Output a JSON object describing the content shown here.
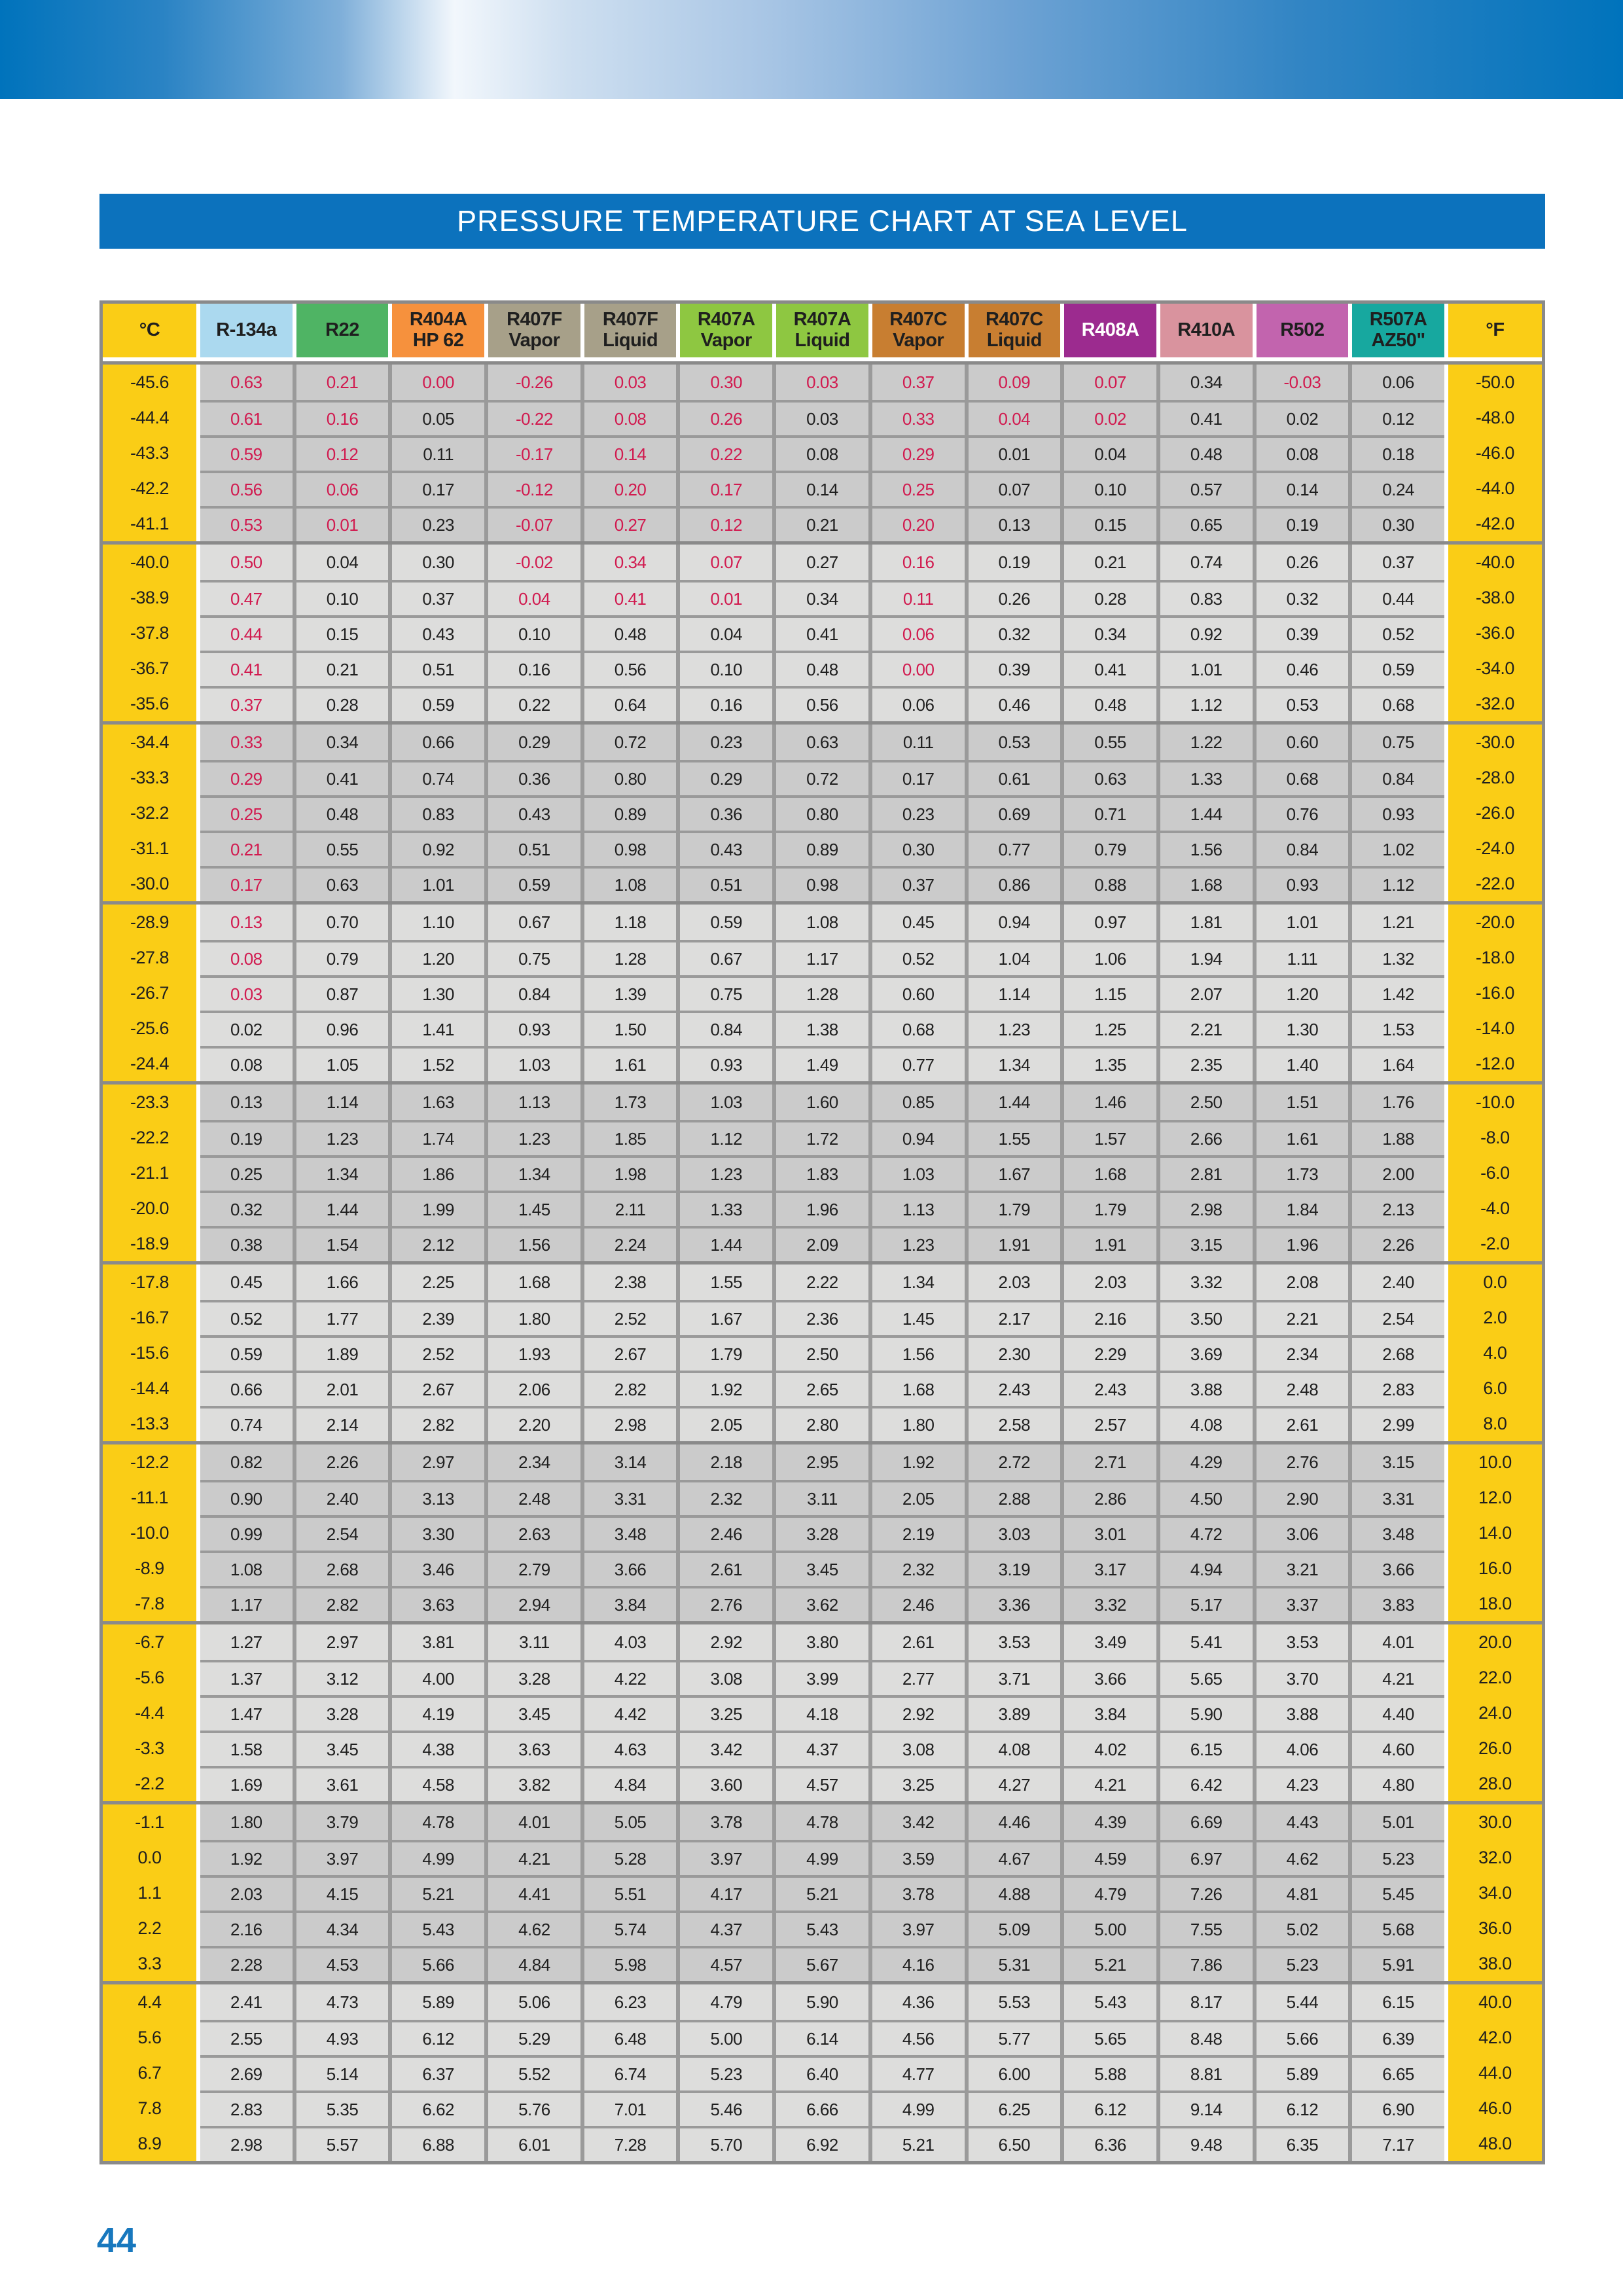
{
  "title": "PRESSURE TEMPERATURE CHART AT SEA LEVEL",
  "page_number": "44",
  "colors": {
    "title_bar": "#0C72BD",
    "banner_blue": "#0073BC",
    "temp_column_yellow": "#FACD16",
    "band_dark": "#CBCBCB",
    "band_light": "#DDDDDC",
    "grid_gray": "#9A9A9A",
    "outer_border": "#8A8A8A",
    "vacuum_red": "#D11A4F",
    "value_black": "#1F1F1F",
    "page_number_blue": "#1878BE"
  },
  "table": {
    "header": [
      {
        "label": "°C",
        "bg": "#FACD16",
        "fg": "#1F1F1F"
      },
      {
        "label": "R-134a",
        "bg": "#ABD9EF",
        "fg": "#1F1F1F"
      },
      {
        "label": "R22",
        "bg": "#4FB464",
        "fg": "#1F1F1F"
      },
      {
        "label": "R404A\nHP 62",
        "bg": "#F6913D",
        "fg": "#1F1F1F"
      },
      {
        "label": "R407F\nVapor",
        "bg": "#A7A089",
        "fg": "#1F1F1F"
      },
      {
        "label": "R407F\nLiquid",
        "bg": "#A7A089",
        "fg": "#1F1F1F"
      },
      {
        "label": "R407A\nVapor",
        "bg": "#8EC741",
        "fg": "#1F1F1F"
      },
      {
        "label": "R407A\nLiquid",
        "bg": "#8EC741",
        "fg": "#1F1F1F"
      },
      {
        "label": "R407C\nVapor",
        "bg": "#C87E31",
        "fg": "#1F1F1F"
      },
      {
        "label": "R407C\nLiquid",
        "bg": "#C87E31",
        "fg": "#1F1F1F"
      },
      {
        "label": "R408A",
        "bg": "#9C2B8F",
        "fg": "#FFFFFF"
      },
      {
        "label": "R410A",
        "bg": "#D9939E",
        "fg": "#1F1F1F"
      },
      {
        "label": "R502",
        "bg": "#C264AE",
        "fg": "#1F1F1F"
      },
      {
        "label": "R507A\nAZ50\"",
        "bg": "#17A89F",
        "fg": "#1F1F1F"
      },
      {
        "label": "°F",
        "bg": "#FACD16",
        "fg": "#1F1F1F"
      }
    ],
    "rows": [
      {
        "c": "-45.6",
        "f": "-50.0",
        "v": [
          "0.63",
          "0.21",
          "0.00",
          "-0.26",
          "0.03",
          "0.30",
          "0.03",
          "0.37",
          "0.09",
          "0.07",
          "0.34",
          "-0.03",
          "0.06"
        ],
        "red": [
          0,
          1,
          2,
          3,
          4,
          5,
          6,
          7,
          8,
          9,
          11
        ]
      },
      {
        "c": "-44.4",
        "f": "-48.0",
        "v": [
          "0.61",
          "0.16",
          "0.05",
          "-0.22",
          "0.08",
          "0.26",
          "0.03",
          "0.33",
          "0.04",
          "0.02",
          "0.41",
          "0.02",
          "0.12"
        ],
        "red": [
          0,
          1,
          3,
          4,
          5,
          7,
          8,
          9
        ]
      },
      {
        "c": "-43.3",
        "f": "-46.0",
        "v": [
          "0.59",
          "0.12",
          "0.11",
          "-0.17",
          "0.14",
          "0.22",
          "0.08",
          "0.29",
          "0.01",
          "0.04",
          "0.48",
          "0.08",
          "0.18"
        ],
        "red": [
          0,
          1,
          3,
          4,
          5,
          7
        ]
      },
      {
        "c": "-42.2",
        "f": "-44.0",
        "v": [
          "0.56",
          "0.06",
          "0.17",
          "-0.12",
          "0.20",
          "0.17",
          "0.14",
          "0.25",
          "0.07",
          "0.10",
          "0.57",
          "0.14",
          "0.24"
        ],
        "red": [
          0,
          1,
          3,
          4,
          5,
          7
        ]
      },
      {
        "c": "-41.1",
        "f": "-42.0",
        "v": [
          "0.53",
          "0.01",
          "0.23",
          "-0.07",
          "0.27",
          "0.12",
          "0.21",
          "0.20",
          "0.13",
          "0.15",
          "0.65",
          "0.19",
          "0.30"
        ],
        "red": [
          0,
          1,
          3,
          4,
          5,
          7
        ]
      },
      {
        "c": "-40.0",
        "f": "-40.0",
        "v": [
          "0.50",
          "0.04",
          "0.30",
          "-0.02",
          "0.34",
          "0.07",
          "0.27",
          "0.16",
          "0.19",
          "0.21",
          "0.74",
          "0.26",
          "0.37"
        ],
        "red": [
          0,
          3,
          4,
          5,
          7
        ]
      },
      {
        "c": "-38.9",
        "f": "-38.0",
        "v": [
          "0.47",
          "0.10",
          "0.37",
          "0.04",
          "0.41",
          "0.01",
          "0.34",
          "0.11",
          "0.26",
          "0.28",
          "0.83",
          "0.32",
          "0.44"
        ],
        "red": [
          0,
          3,
          4,
          5,
          7
        ]
      },
      {
        "c": "-37.8",
        "f": "-36.0",
        "v": [
          "0.44",
          "0.15",
          "0.43",
          "0.10",
          "0.48",
          "0.04",
          "0.41",
          "0.06",
          "0.32",
          "0.34",
          "0.92",
          "0.39",
          "0.52"
        ],
        "red": [
          0,
          7
        ]
      },
      {
        "c": "-36.7",
        "f": "-34.0",
        "v": [
          "0.41",
          "0.21",
          "0.51",
          "0.16",
          "0.56",
          "0.10",
          "0.48",
          "0.00",
          "0.39",
          "0.41",
          "1.01",
          "0.46",
          "0.59"
        ],
        "red": [
          0,
          7
        ]
      },
      {
        "c": "-35.6",
        "f": "-32.0",
        "v": [
          "0.37",
          "0.28",
          "0.59",
          "0.22",
          "0.64",
          "0.16",
          "0.56",
          "0.06",
          "0.46",
          "0.48",
          "1.12",
          "0.53",
          "0.68"
        ],
        "red": [
          0
        ]
      },
      {
        "c": "-34.4",
        "f": "-30.0",
        "v": [
          "0.33",
          "0.34",
          "0.66",
          "0.29",
          "0.72",
          "0.23",
          "0.63",
          "0.11",
          "0.53",
          "0.55",
          "1.22",
          "0.60",
          "0.75"
        ],
        "red": [
          0
        ]
      },
      {
        "c": "-33.3",
        "f": "-28.0",
        "v": [
          "0.29",
          "0.41",
          "0.74",
          "0.36",
          "0.80",
          "0.29",
          "0.72",
          "0.17",
          "0.61",
          "0.63",
          "1.33",
          "0.68",
          "0.84"
        ],
        "red": [
          0
        ]
      },
      {
        "c": "-32.2",
        "f": "-26.0",
        "v": [
          "0.25",
          "0.48",
          "0.83",
          "0.43",
          "0.89",
          "0.36",
          "0.80",
          "0.23",
          "0.69",
          "0.71",
          "1.44",
          "0.76",
          "0.93"
        ],
        "red": [
          0
        ]
      },
      {
        "c": "-31.1",
        "f": "-24.0",
        "v": [
          "0.21",
          "0.55",
          "0.92",
          "0.51",
          "0.98",
          "0.43",
          "0.89",
          "0.30",
          "0.77",
          "0.79",
          "1.56",
          "0.84",
          "1.02"
        ],
        "red": [
          0
        ]
      },
      {
        "c": "-30.0",
        "f": "-22.0",
        "v": [
          "0.17",
          "0.63",
          "1.01",
          "0.59",
          "1.08",
          "0.51",
          "0.98",
          "0.37",
          "0.86",
          "0.88",
          "1.68",
          "0.93",
          "1.12"
        ],
        "red": [
          0
        ]
      },
      {
        "c": "-28.9",
        "f": "-20.0",
        "v": [
          "0.13",
          "0.70",
          "1.10",
          "0.67",
          "1.18",
          "0.59",
          "1.08",
          "0.45",
          "0.94",
          "0.97",
          "1.81",
          "1.01",
          "1.21"
        ],
        "red": [
          0
        ]
      },
      {
        "c": "-27.8",
        "f": "-18.0",
        "v": [
          "0.08",
          "0.79",
          "1.20",
          "0.75",
          "1.28",
          "0.67",
          "1.17",
          "0.52",
          "1.04",
          "1.06",
          "1.94",
          "1.11",
          "1.32"
        ],
        "red": [
          0
        ]
      },
      {
        "c": "-26.7",
        "f": "-16.0",
        "v": [
          "0.03",
          "0.87",
          "1.30",
          "0.84",
          "1.39",
          "0.75",
          "1.28",
          "0.60",
          "1.14",
          "1.15",
          "2.07",
          "1.20",
          "1.42"
        ],
        "red": [
          0
        ]
      },
      {
        "c": "-25.6",
        "f": "-14.0",
        "v": [
          "0.02",
          "0.96",
          "1.41",
          "0.93",
          "1.50",
          "0.84",
          "1.38",
          "0.68",
          "1.23",
          "1.25",
          "2.21",
          "1.30",
          "1.53"
        ],
        "red": []
      },
      {
        "c": "-24.4",
        "f": "-12.0",
        "v": [
          "0.08",
          "1.05",
          "1.52",
          "1.03",
          "1.61",
          "0.93",
          "1.49",
          "0.77",
          "1.34",
          "1.35",
          "2.35",
          "1.40",
          "1.64"
        ],
        "red": []
      },
      {
        "c": "-23.3",
        "f": "-10.0",
        "v": [
          "0.13",
          "1.14",
          "1.63",
          "1.13",
          "1.73",
          "1.03",
          "1.60",
          "0.85",
          "1.44",
          "1.46",
          "2.50",
          "1.51",
          "1.76"
        ],
        "red": []
      },
      {
        "c": "-22.2",
        "f": "-8.0",
        "v": [
          "0.19",
          "1.23",
          "1.74",
          "1.23",
          "1.85",
          "1.12",
          "1.72",
          "0.94",
          "1.55",
          "1.57",
          "2.66",
          "1.61",
          "1.88"
        ],
        "red": []
      },
      {
        "c": "-21.1",
        "f": "-6.0",
        "v": [
          "0.25",
          "1.34",
          "1.86",
          "1.34",
          "1.98",
          "1.23",
          "1.83",
          "1.03",
          "1.67",
          "1.68",
          "2.81",
          "1.73",
          "2.00"
        ],
        "red": []
      },
      {
        "c": "-20.0",
        "f": "-4.0",
        "v": [
          "0.32",
          "1.44",
          "1.99",
          "1.45",
          "2.11",
          "1.33",
          "1.96",
          "1.13",
          "1.79",
          "1.79",
          "2.98",
          "1.84",
          "2.13"
        ],
        "red": []
      },
      {
        "c": "-18.9",
        "f": "-2.0",
        "v": [
          "0.38",
          "1.54",
          "2.12",
          "1.56",
          "2.24",
          "1.44",
          "2.09",
          "1.23",
          "1.91",
          "1.91",
          "3.15",
          "1.96",
          "2.26"
        ],
        "red": []
      },
      {
        "c": "-17.8",
        "f": "0.0",
        "v": [
          "0.45",
          "1.66",
          "2.25",
          "1.68",
          "2.38",
          "1.55",
          "2.22",
          "1.34",
          "2.03",
          "2.03",
          "3.32",
          "2.08",
          "2.40"
        ],
        "red": []
      },
      {
        "c": "-16.7",
        "f": "2.0",
        "v": [
          "0.52",
          "1.77",
          "2.39",
          "1.80",
          "2.52",
          "1.67",
          "2.36",
          "1.45",
          "2.17",
          "2.16",
          "3.50",
          "2.21",
          "2.54"
        ],
        "red": []
      },
      {
        "c": "-15.6",
        "f": "4.0",
        "v": [
          "0.59",
          "1.89",
          "2.52",
          "1.93",
          "2.67",
          "1.79",
          "2.50",
          "1.56",
          "2.30",
          "2.29",
          "3.69",
          "2.34",
          "2.68"
        ],
        "red": []
      },
      {
        "c": "-14.4",
        "f": "6.0",
        "v": [
          "0.66",
          "2.01",
          "2.67",
          "2.06",
          "2.82",
          "1.92",
          "2.65",
          "1.68",
          "2.43",
          "2.43",
          "3.88",
          "2.48",
          "2.83"
        ],
        "red": []
      },
      {
        "c": "-13.3",
        "f": "8.0",
        "v": [
          "0.74",
          "2.14",
          "2.82",
          "2.20",
          "2.98",
          "2.05",
          "2.80",
          "1.80",
          "2.58",
          "2.57",
          "4.08",
          "2.61",
          "2.99"
        ],
        "red": []
      },
      {
        "c": "-12.2",
        "f": "10.0",
        "v": [
          "0.82",
          "2.26",
          "2.97",
          "2.34",
          "3.14",
          "2.18",
          "2.95",
          "1.92",
          "2.72",
          "2.71",
          "4.29",
          "2.76",
          "3.15"
        ],
        "red": []
      },
      {
        "c": "-11.1",
        "f": "12.0",
        "v": [
          "0.90",
          "2.40",
          "3.13",
          "2.48",
          "3.31",
          "2.32",
          "3.11",
          "2.05",
          "2.88",
          "2.86",
          "4.50",
          "2.90",
          "3.31"
        ],
        "red": []
      },
      {
        "c": "-10.0",
        "f": "14.0",
        "v": [
          "0.99",
          "2.54",
          "3.30",
          "2.63",
          "3.48",
          "2.46",
          "3.28",
          "2.19",
          "3.03",
          "3.01",
          "4.72",
          "3.06",
          "3.48"
        ],
        "red": []
      },
      {
        "c": "-8.9",
        "f": "16.0",
        "v": [
          "1.08",
          "2.68",
          "3.46",
          "2.79",
          "3.66",
          "2.61",
          "3.45",
          "2.32",
          "3.19",
          "3.17",
          "4.94",
          "3.21",
          "3.66"
        ],
        "red": []
      },
      {
        "c": "-7.8",
        "f": "18.0",
        "v": [
          "1.17",
          "2.82",
          "3.63",
          "2.94",
          "3.84",
          "2.76",
          "3.62",
          "2.46",
          "3.36",
          "3.32",
          "5.17",
          "3.37",
          "3.83"
        ],
        "red": []
      },
      {
        "c": "-6.7",
        "f": "20.0",
        "v": [
          "1.27",
          "2.97",
          "3.81",
          "3.11",
          "4.03",
          "2.92",
          "3.80",
          "2.61",
          "3.53",
          "3.49",
          "5.41",
          "3.53",
          "4.01"
        ],
        "red": []
      },
      {
        "c": "-5.6",
        "f": "22.0",
        "v": [
          "1.37",
          "3.12",
          "4.00",
          "3.28",
          "4.22",
          "3.08",
          "3.99",
          "2.77",
          "3.71",
          "3.66",
          "5.65",
          "3.70",
          "4.21"
        ],
        "red": []
      },
      {
        "c": "-4.4",
        "f": "24.0",
        "v": [
          "1.47",
          "3.28",
          "4.19",
          "3.45",
          "4.42",
          "3.25",
          "4.18",
          "2.92",
          "3.89",
          "3.84",
          "5.90",
          "3.88",
          "4.40"
        ],
        "red": []
      },
      {
        "c": "-3.3",
        "f": "26.0",
        "v": [
          "1.58",
          "3.45",
          "4.38",
          "3.63",
          "4.63",
          "3.42",
          "4.37",
          "3.08",
          "4.08",
          "4.02",
          "6.15",
          "4.06",
          "4.60"
        ],
        "red": []
      },
      {
        "c": "-2.2",
        "f": "28.0",
        "v": [
          "1.69",
          "3.61",
          "4.58",
          "3.82",
          "4.84",
          "3.60",
          "4.57",
          "3.25",
          "4.27",
          "4.21",
          "6.42",
          "4.23",
          "4.80"
        ],
        "red": []
      },
      {
        "c": "-1.1",
        "f": "30.0",
        "v": [
          "1.80",
          "3.79",
          "4.78",
          "4.01",
          "5.05",
          "3.78",
          "4.78",
          "3.42",
          "4.46",
          "4.39",
          "6.69",
          "4.43",
          "5.01"
        ],
        "red": []
      },
      {
        "c": "0.0",
        "f": "32.0",
        "v": [
          "1.92",
          "3.97",
          "4.99",
          "4.21",
          "5.28",
          "3.97",
          "4.99",
          "3.59",
          "4.67",
          "4.59",
          "6.97",
          "4.62",
          "5.23"
        ],
        "red": []
      },
      {
        "c": "1.1",
        "f": "34.0",
        "v": [
          "2.03",
          "4.15",
          "5.21",
          "4.41",
          "5.51",
          "4.17",
          "5.21",
          "3.78",
          "4.88",
          "4.79",
          "7.26",
          "4.81",
          "5.45"
        ],
        "red": []
      },
      {
        "c": "2.2",
        "f": "36.0",
        "v": [
          "2.16",
          "4.34",
          "5.43",
          "4.62",
          "5.74",
          "4.37",
          "5.43",
          "3.97",
          "5.09",
          "5.00",
          "7.55",
          "5.02",
          "5.68"
        ],
        "red": []
      },
      {
        "c": "3.3",
        "f": "38.0",
        "v": [
          "2.28",
          "4.53",
          "5.66",
          "4.84",
          "5.98",
          "4.57",
          "5.67",
          "4.16",
          "5.31",
          "5.21",
          "7.86",
          "5.23",
          "5.91"
        ],
        "red": []
      },
      {
        "c": "4.4",
        "f": "40.0",
        "v": [
          "2.41",
          "4.73",
          "5.89",
          "5.06",
          "6.23",
          "4.79",
          "5.90",
          "4.36",
          "5.53",
          "5.43",
          "8.17",
          "5.44",
          "6.15"
        ],
        "red": []
      },
      {
        "c": "5.6",
        "f": "42.0",
        "v": [
          "2.55",
          "4.93",
          "6.12",
          "5.29",
          "6.48",
          "5.00",
          "6.14",
          "4.56",
          "5.77",
          "5.65",
          "8.48",
          "5.66",
          "6.39"
        ],
        "red": []
      },
      {
        "c": "6.7",
        "f": "44.0",
        "v": [
          "2.69",
          "5.14",
          "6.37",
          "5.52",
          "6.74",
          "5.23",
          "6.40",
          "4.77",
          "6.00",
          "5.88",
          "8.81",
          "5.89",
          "6.65"
        ],
        "red": []
      },
      {
        "c": "7.8",
        "f": "46.0",
        "v": [
          "2.83",
          "5.35",
          "6.62",
          "5.76",
          "7.01",
          "5.46",
          "6.66",
          "4.99",
          "6.25",
          "6.12",
          "9.14",
          "6.12",
          "6.90"
        ],
        "red": []
      },
      {
        "c": "8.9",
        "f": "48.0",
        "v": [
          "2.98",
          "5.57",
          "6.88",
          "6.01",
          "7.28",
          "5.70",
          "6.92",
          "5.21",
          "6.50",
          "6.36",
          "9.48",
          "6.35",
          "7.17"
        ],
        "red": []
      }
    ]
  }
}
